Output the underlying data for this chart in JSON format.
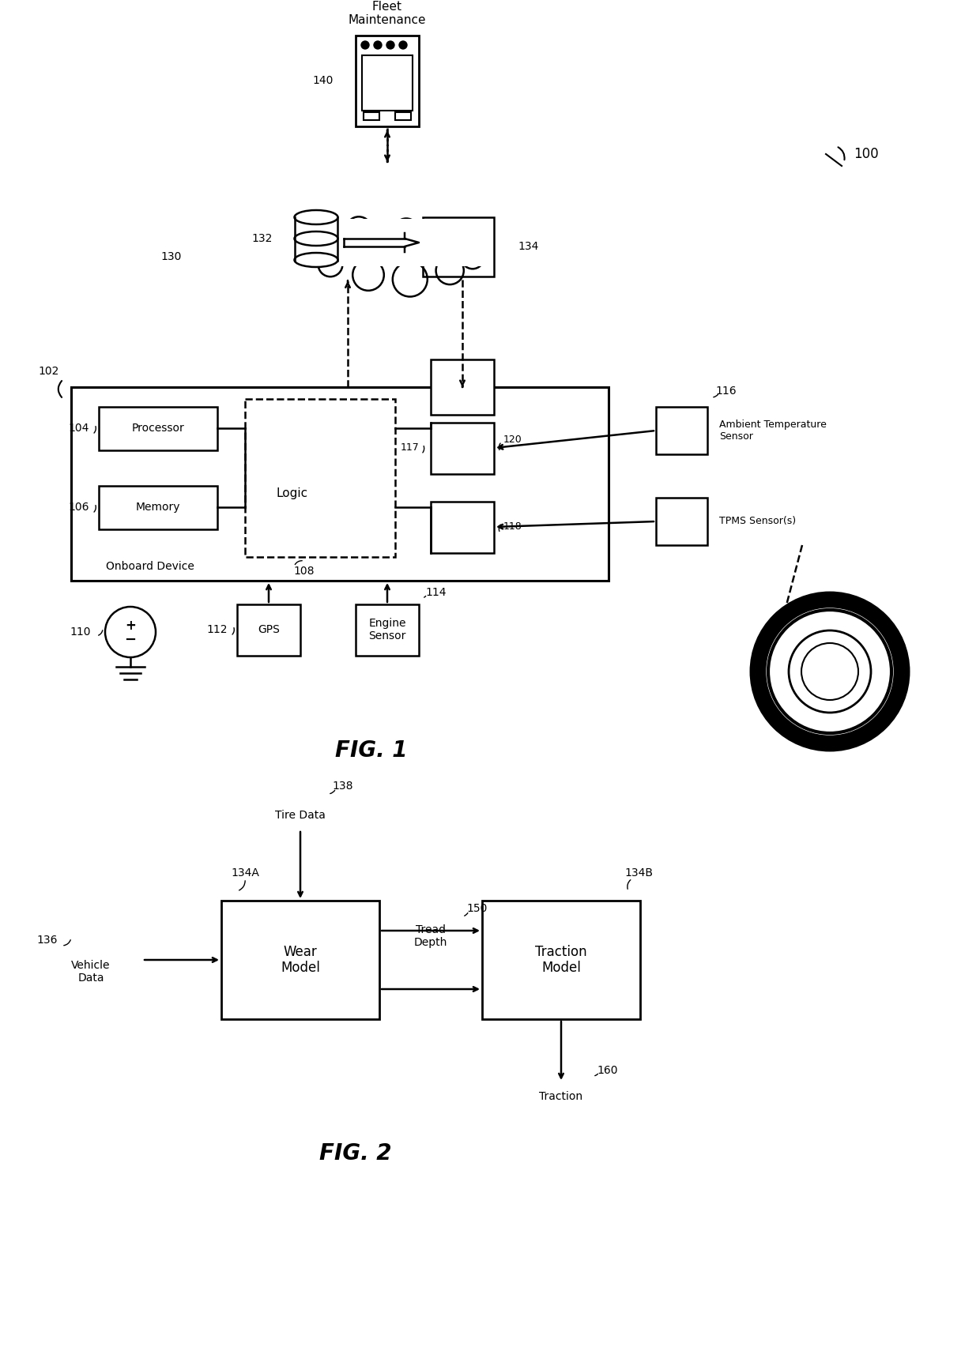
{
  "bg_color": "#ffffff",
  "line_color": "#000000",
  "fig1_title": "FIG. 1",
  "fig2_title": "FIG. 2",
  "labels": {
    "fleet_maintenance": "Fleet\nMaintenance",
    "140": "140",
    "130": "130",
    "132": "132",
    "134": "134",
    "102": "102",
    "104": "104",
    "106": "106",
    "108": "108",
    "110": "110",
    "112": "112",
    "114": "114",
    "116": "116",
    "117": "117",
    "118": "118",
    "120": "120",
    "processor": "Processor",
    "memory": "Memory",
    "logic": "Logic",
    "onboard": "Onboard Device",
    "gps": "GPS",
    "engine_sensor": "Engine\nSensor",
    "ambient_temp": "Ambient Temperature\nSensor",
    "tpms": "TPMS Sensor(s)",
    "100_label": "100",
    "136": "136",
    "138": "138",
    "134A": "134A",
    "134B": "134B",
    "150": "150",
    "160": "160",
    "vehicle_data": "Vehicle\nData",
    "tire_data": "Tire Data",
    "wear_model": "Wear\nModel",
    "traction_model": "Traction\nModel",
    "tread_depth": "Tread\nDepth",
    "traction": "Traction"
  }
}
